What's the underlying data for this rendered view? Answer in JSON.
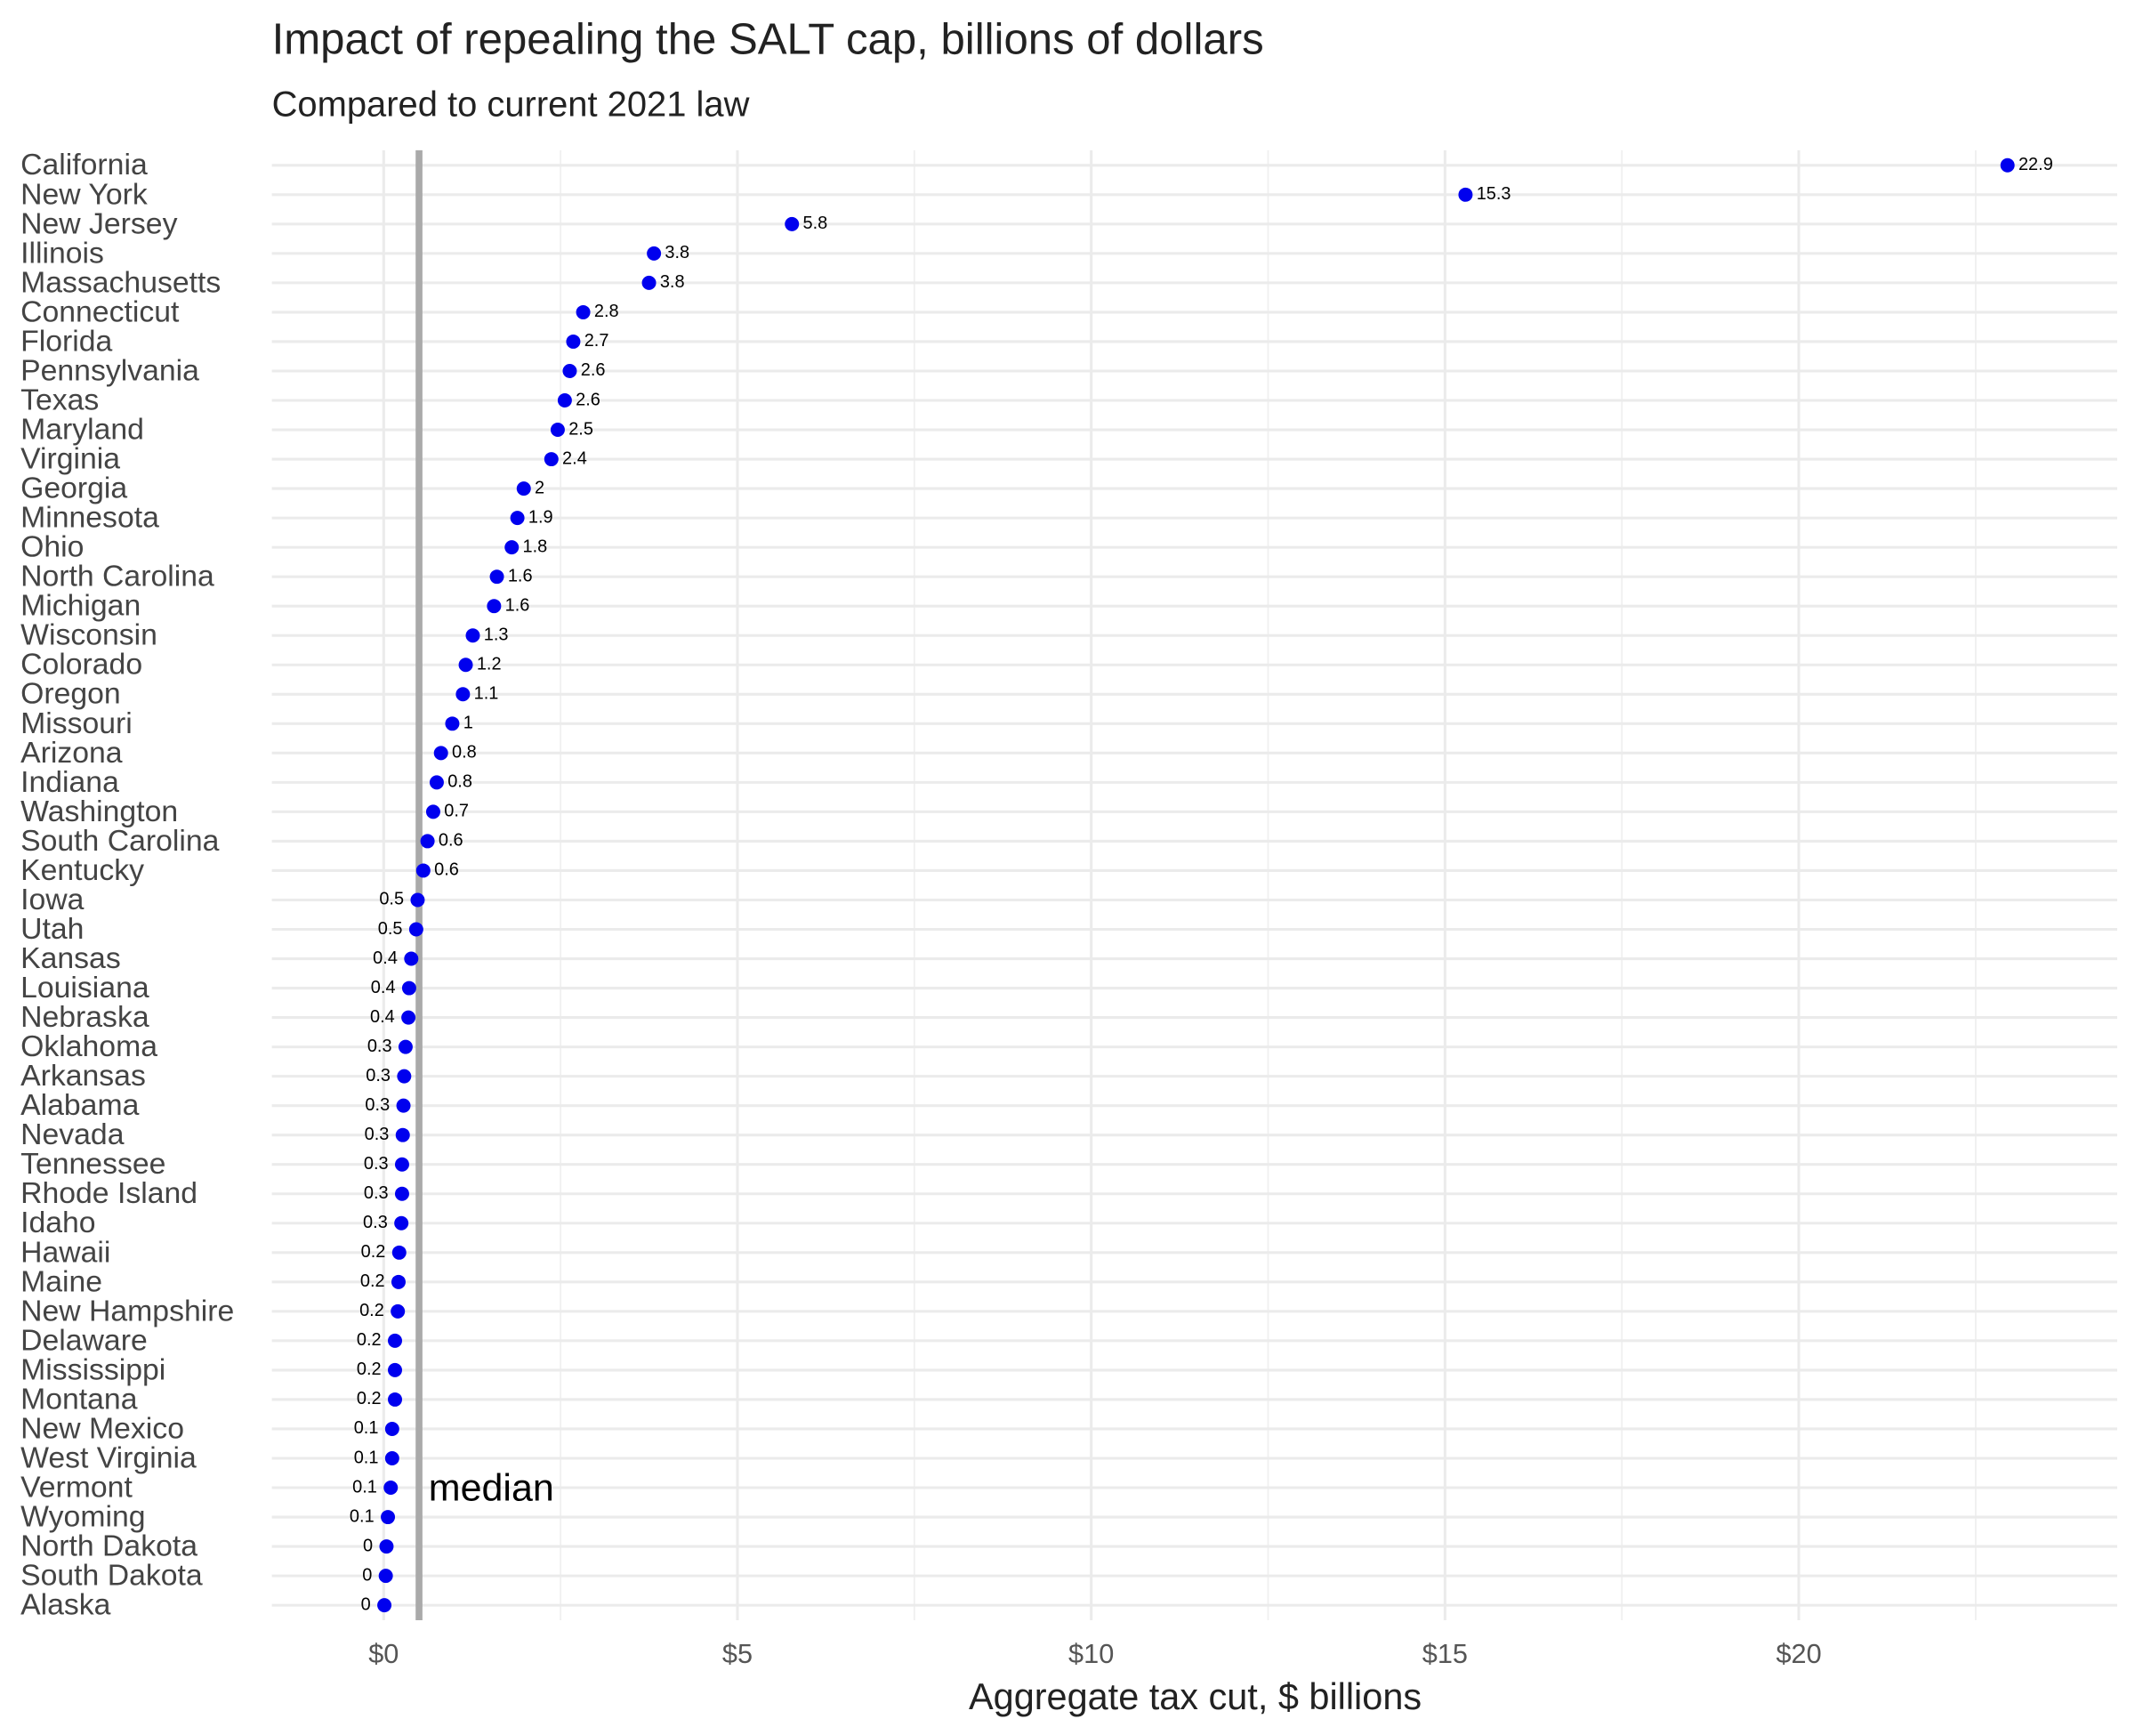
{
  "chart_data": {
    "type": "dot",
    "title": "Impact of repealing the SALT cap, billions of dollars",
    "subtitle": "Compared to current 2021 law",
    "x_label": "Aggregate tax cut, $ billions",
    "categories": [
      "California",
      "New York",
      "New Jersey",
      "Illinois",
      "Massachusetts",
      "Connecticut",
      "Florida",
      "Pennsylvania",
      "Texas",
      "Maryland",
      "Virginia",
      "Georgia",
      "Minnesota",
      "Ohio",
      "North Carolina",
      "Michigan",
      "Wisconsin",
      "Colorado",
      "Oregon",
      "Missouri",
      "Arizona",
      "Indiana",
      "Washington",
      "South Carolina",
      "Kentucky",
      "Iowa",
      "Utah",
      "Kansas",
      "Louisiana",
      "Nebraska",
      "Oklahoma",
      "Arkansas",
      "Alabama",
      "Nevada",
      "Tennessee",
      "Rhode Island",
      "Idaho",
      "Hawaii",
      "Maine",
      "New Hampshire",
      "Delaware",
      "Mississippi",
      "Montana",
      "New Mexico",
      "West Virginia",
      "Vermont",
      "Wyoming",
      "North Dakota",
      "South Dakota",
      "Alaska"
    ],
    "values": [
      22.95,
      15.29,
      5.77,
      3.82,
      3.75,
      2.82,
      2.68,
      2.63,
      2.56,
      2.46,
      2.37,
      1.98,
      1.89,
      1.81,
      1.6,
      1.56,
      1.26,
      1.16,
      1.12,
      0.97,
      0.81,
      0.75,
      0.7,
      0.62,
      0.56,
      0.48,
      0.46,
      0.39,
      0.36,
      0.35,
      0.31,
      0.29,
      0.28,
      0.27,
      0.26,
      0.26,
      0.25,
      0.22,
      0.21,
      0.2,
      0.16,
      0.16,
      0.16,
      0.12,
      0.12,
      0.1,
      0.06,
      0.04,
      0.03,
      0.01
    ],
    "value_labels": [
      "22.9",
      "15.3",
      "5.8",
      "3.8",
      "3.8",
      "2.8",
      "2.7",
      "2.6",
      "2.6",
      "2.5",
      "2.4",
      "2",
      "1.9",
      "1.8",
      "1.6",
      "1.6",
      "1.3",
      "1.2",
      "1.1",
      "1",
      "0.8",
      "0.8",
      "0.7",
      "0.6",
      "0.6",
      "0.5",
      "0.5",
      "0.4",
      "0.4",
      "0.4",
      "0.3",
      "0.3",
      "0.3",
      "0.3",
      "0.3",
      "0.3",
      "0.3",
      "0.2",
      "0.2",
      "0.2",
      "0.2",
      "0.2",
      "0.2",
      "0.1",
      "0.1",
      "0.1",
      "0.1",
      "0",
      "0",
      "0"
    ],
    "color": "#0000ee",
    "median": {
      "value": 0.5,
      "label": "median"
    },
    "xlim": [
      -1.58,
      24.5
    ],
    "xticks": [
      {
        "value": 0,
        "label": "$0"
      },
      {
        "value": 5,
        "label": "$5"
      },
      {
        "value": 10,
        "label": "$10"
      },
      {
        "value": 15,
        "label": "$15"
      },
      {
        "value": 20,
        "label": "$20"
      }
    ],
    "minor_xticks": [
      2.5,
      7.5,
      12.5,
      17.5,
      22.5
    ],
    "grid": true
  }
}
